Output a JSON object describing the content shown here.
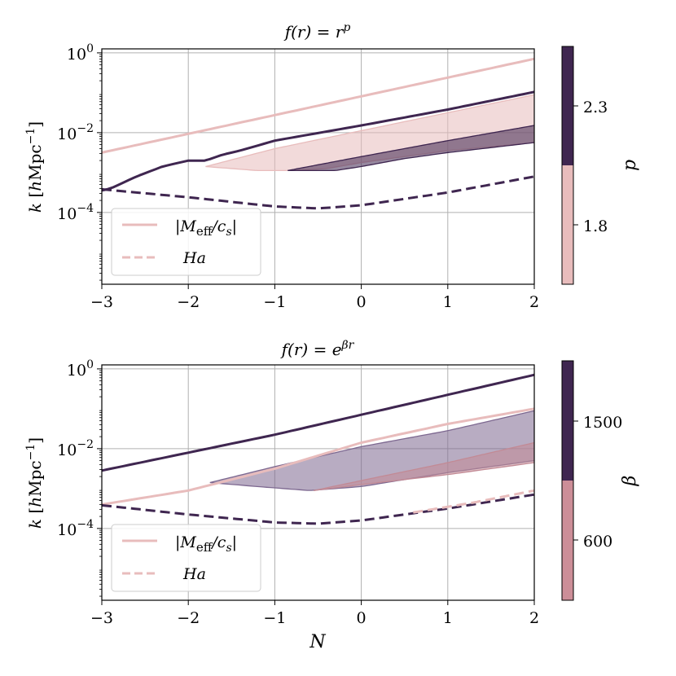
{
  "chart_data": [
    {
      "type": "line",
      "title": "f(r) = r^p",
      "xlabel": "",
      "ylabel": "k [hMpc^-1]",
      "xlim": [
        -3,
        2
      ],
      "ylim_log10": [
        -5.8,
        0.1
      ],
      "xticks": [
        "−3",
        "−2",
        "−1",
        "0",
        "1",
        "2"
      ],
      "yticks": [
        "10^0",
        "10^-2",
        "10^-4"
      ],
      "grid": true,
      "legend": {
        "placement": "lower-left",
        "entries": [
          "|M_eff/c_s|",
          "Ha"
        ]
      },
      "colorbar": {
        "label": "p",
        "ticks": [
          "2.3",
          "1.8"
        ],
        "colors": [
          "#3f2650",
          "#e8bcbc"
        ]
      },
      "series": [
        {
          "legend_ref": "|M_eff/c_s|",
          "param": 1.8,
          "color": "#e8bcbc",
          "style": "solid",
          "x": [
            -3,
            2
          ],
          "log10_y": [
            -2.5,
            -0.15
          ]
        },
        {
          "legend_ref": "|M_eff/c_s|",
          "param": 2.3,
          "color": "#3f2650",
          "style": "solid",
          "x": [
            -3,
            -2.9,
            -2.6,
            -2.3,
            -2.0,
            -1.8,
            -1.6,
            -1.4,
            -1.0,
            0,
            1,
            2
          ],
          "log10_y": [
            -3.45,
            -3.4,
            -3.1,
            -2.85,
            -2.7,
            -2.7,
            -2.55,
            -2.45,
            -2.2,
            -1.82,
            -1.42,
            -0.98
          ]
        },
        {
          "legend_ref": "Ha",
          "param": 2.3,
          "color": "#3f2650",
          "style": "dashed",
          "x": [
            -3,
            -2,
            -1,
            -0.5,
            0,
            1,
            2
          ],
          "log10_y": [
            -3.42,
            -3.62,
            -3.85,
            -3.9,
            -3.82,
            -3.5,
            -3.1
          ]
        }
      ],
      "bands": [
        {
          "param": 1.8,
          "color": "#e8bcbc",
          "x_upper": [
            -1.8,
            -1,
            0,
            1,
            2
          ],
          "log10_upper": [
            -2.85,
            -2.4,
            -1.95,
            -1.5,
            -1.05
          ],
          "x_lower": [
            -1.8,
            -1.2,
            -0.8,
            -0.4,
            0,
            1,
            2
          ],
          "log10_lower": [
            -2.85,
            -2.95,
            -2.95,
            -2.9,
            -2.75,
            -2.45,
            -2.25
          ]
        },
        {
          "param": 2.3,
          "color": "#3f2650",
          "x_upper": [
            -0.85,
            0,
            1,
            2
          ],
          "log10_upper": [
            -2.95,
            -2.6,
            -2.2,
            -1.82
          ],
          "x_lower": [
            -0.85,
            -0.3,
            0,
            0.5,
            1,
            2
          ],
          "log10_lower": [
            -2.95,
            -2.95,
            -2.85,
            -2.65,
            -2.5,
            -2.25
          ]
        }
      ]
    },
    {
      "type": "line",
      "title": "f(r) = e^(βr)",
      "xlabel": "N",
      "ylabel": "k [hMpc^-1]",
      "xlim": [
        -3,
        2
      ],
      "ylim_log10": [
        -5.8,
        0.1
      ],
      "xticks": [
        "−3",
        "−2",
        "−1",
        "0",
        "1",
        "2"
      ],
      "yticks": [
        "10^0",
        "10^-2",
        "10^-4"
      ],
      "grid": true,
      "legend": {
        "placement": "lower-left",
        "entries": [
          "|M_eff/c_s|",
          "Ha"
        ]
      },
      "colorbar": {
        "label": "β",
        "ticks": [
          "1500",
          "600"
        ],
        "colors": [
          "#3f2650",
          "#cc8e98"
        ]
      },
      "series": [
        {
          "legend_ref": "|M_eff/c_s|",
          "param": 1500,
          "color": "#3f2650",
          "style": "solid",
          "x": [
            -3,
            -2,
            -1,
            0,
            1,
            2
          ],
          "log10_y": [
            -2.55,
            -2.1,
            -1.65,
            -1.15,
            -0.65,
            -0.15
          ]
        },
        {
          "legend_ref": "|M_eff/c_s|",
          "param": 600,
          "color": "#e8bcbc",
          "style": "solid",
          "x": [
            -3,
            -2,
            -1,
            0,
            1,
            2
          ],
          "log10_y": [
            -3.4,
            -3.05,
            -2.5,
            -1.85,
            -1.38,
            -1.0
          ]
        },
        {
          "legend_ref": "Ha",
          "param": 1500,
          "color": "#3f2650",
          "style": "dashed",
          "x": [
            -3,
            -2,
            -1,
            -0.5,
            0,
            1,
            2
          ],
          "log10_y": [
            -3.42,
            -3.65,
            -3.85,
            -3.88,
            -3.8,
            -3.5,
            -3.15
          ]
        },
        {
          "legend_ref": "Ha",
          "param": 600,
          "color": "#e8bcbc",
          "style": "dashed",
          "x": [
            0.6,
            1.3,
            2
          ],
          "log10_y": [
            -3.6,
            -3.35,
            -3.05
          ]
        }
      ],
      "bands": [
        {
          "param": 1500,
          "color": "#7d6890",
          "x_upper": [
            -1.75,
            -1,
            0,
            1,
            2
          ],
          "log10_upper": [
            -2.85,
            -2.45,
            -1.95,
            -1.55,
            -1.05
          ],
          "x_lower": [
            -1.75,
            -1.2,
            -0.6,
            0,
            1,
            2
          ],
          "log10_lower": [
            -2.85,
            -2.95,
            -3.05,
            -2.95,
            -2.6,
            -2.3
          ]
        },
        {
          "param": 600,
          "color": "#c28a95",
          "x_upper": [
            -0.55,
            0,
            1,
            2
          ],
          "log10_upper": [
            -3.05,
            -2.8,
            -2.35,
            -1.85
          ],
          "x_lower": [
            -0.55,
            0,
            1,
            2
          ],
          "log10_lower": [
            -3.05,
            -2.9,
            -2.65,
            -2.35
          ]
        }
      ]
    }
  ]
}
